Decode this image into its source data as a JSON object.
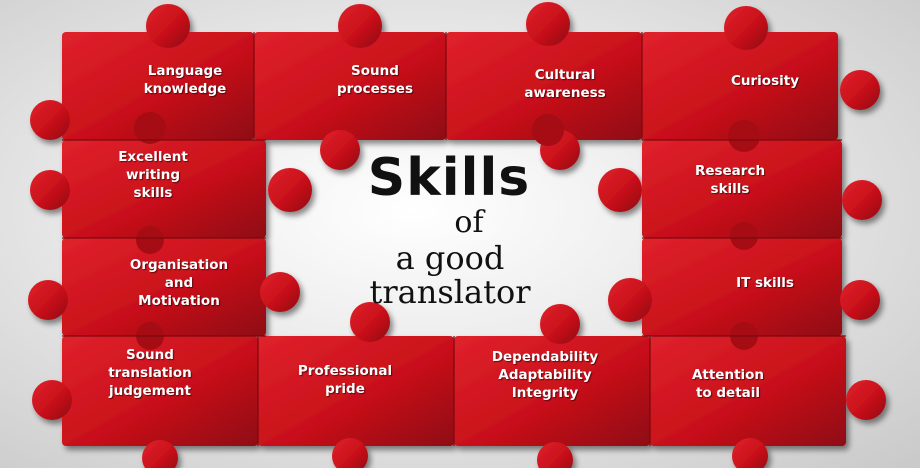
{
  "title": {
    "main": "Skills",
    "line2": "of",
    "line3": "a good",
    "line4": "translator"
  },
  "pieces": [
    {
      "label": "Language\nknowledge"
    },
    {
      "label": "Sound\nprocesses"
    },
    {
      "label": "Cultural\nawareness"
    },
    {
      "label": "Curiosity"
    },
    {
      "label": "Excellent\nwriting\nskills"
    },
    {
      "label": "Research\nskills"
    },
    {
      "label": "Organisation\nand\nMotivation"
    },
    {
      "label": "IT skills"
    },
    {
      "label": "Sound\ntranslation\njudgement"
    },
    {
      "label": "Professional\npride"
    },
    {
      "label": "Dependability\nAdaptability\nIntegrity"
    },
    {
      "label": "Attention\nto detail"
    }
  ],
  "colors": {
    "piece_red": "#c8101a",
    "piece_dark": "#8c0a10",
    "background": "#e4e4e4"
  }
}
